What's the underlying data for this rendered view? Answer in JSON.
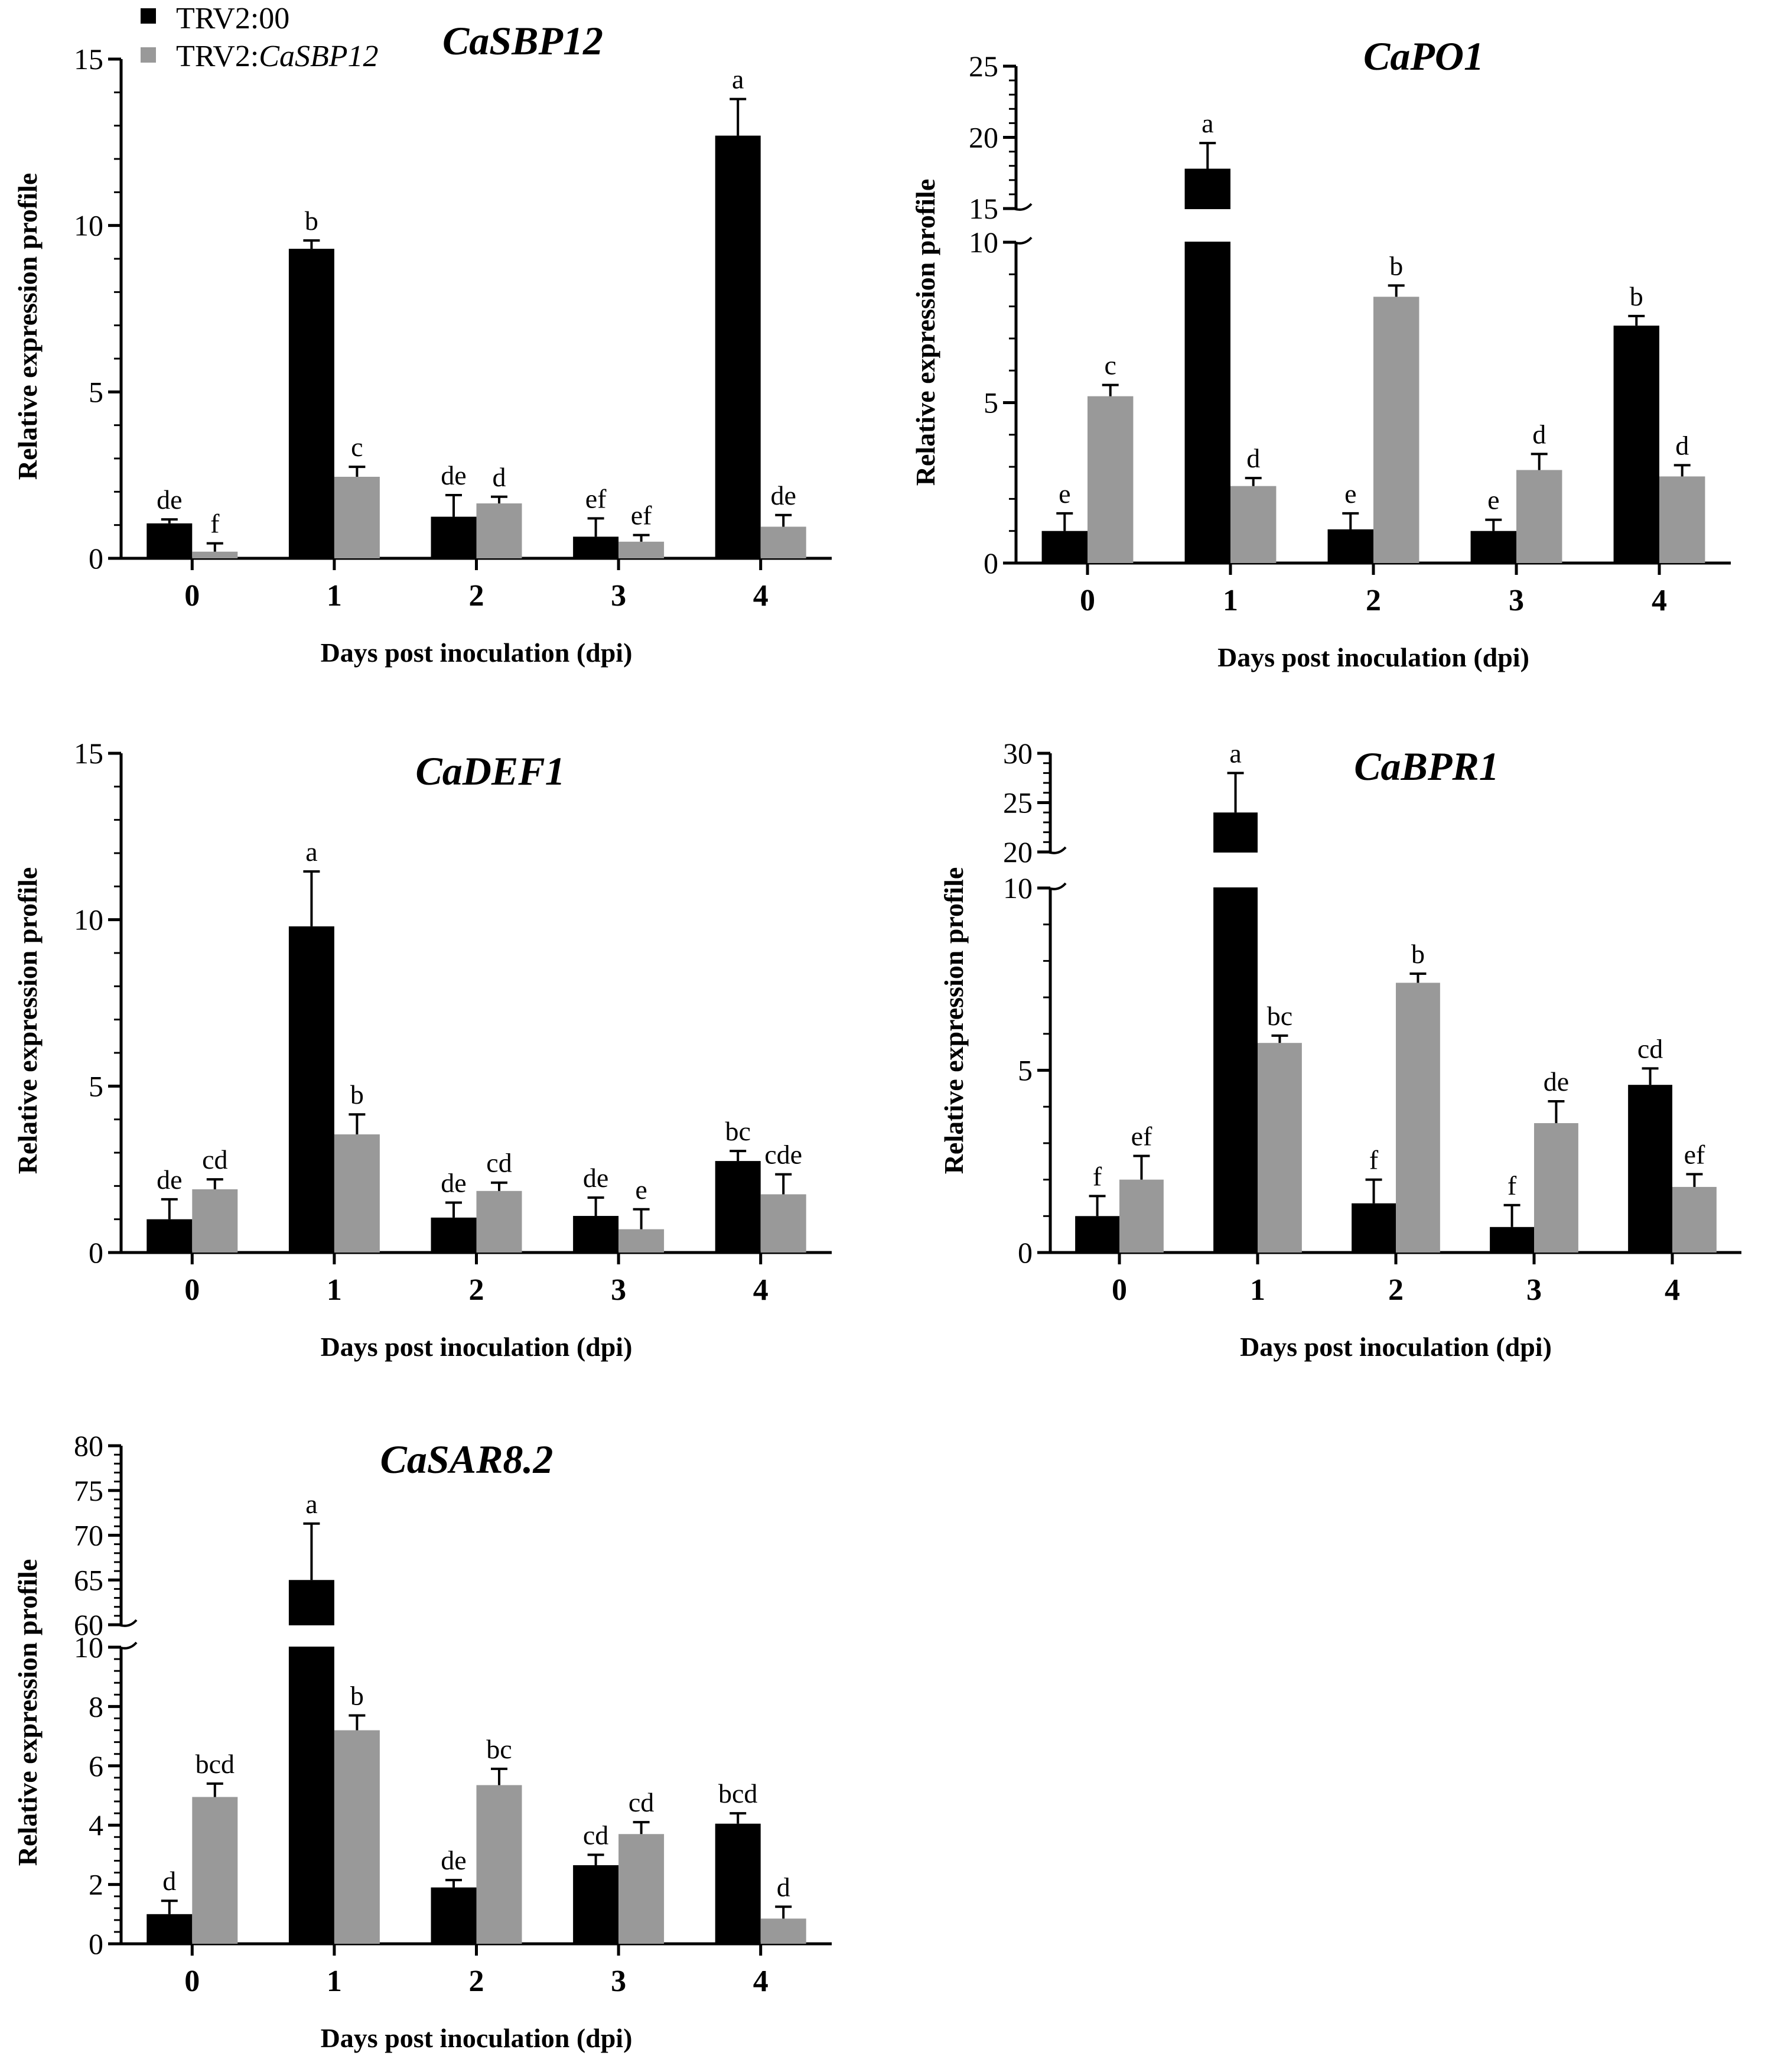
{
  "legend": {
    "series": [
      {
        "label_prefix": "TRV2:00",
        "label_italic": "",
        "color": "#000000"
      },
      {
        "label_prefix": "TRV2:",
        "label_italic": "CaSBP12",
        "color": "#999999"
      }
    ]
  },
  "chart_data": [
    {
      "type": "bar",
      "title": "CaSBP12",
      "xlabel": "Days post inoculation (dpi)",
      "ylabel": "Relative expression profile",
      "categories": [
        "0",
        "1",
        "2",
        "3",
        "4"
      ],
      "ylim": [
        0,
        15
      ],
      "yticks": [
        0,
        5,
        10,
        15
      ],
      "yticklabels": [
        "0",
        "5",
        "10",
        "15"
      ],
      "ybreak": null,
      "series": [
        {
          "name": "TRV2:00",
          "color": "#000000",
          "values": [
            1.05,
            9.3,
            1.25,
            0.65,
            12.7
          ],
          "errors": [
            0.12,
            0.25,
            0.65,
            0.55,
            1.1
          ],
          "labels": [
            "de",
            "b",
            "de",
            "ef",
            "a"
          ]
        },
        {
          "name": "TRV2:CaSBP12",
          "color": "#999999",
          "values": [
            0.2,
            2.45,
            1.65,
            0.5,
            0.95
          ],
          "errors": [
            0.25,
            0.3,
            0.2,
            0.2,
            0.35
          ],
          "labels": [
            "f",
            "c",
            "d",
            "ef",
            "de"
          ]
        }
      ]
    },
    {
      "type": "bar",
      "title": "CaPO1",
      "xlabel": "Days post inoculation (dpi)",
      "ylabel": "Relative expression profile",
      "categories": [
        "0",
        "1",
        "2",
        "3",
        "4"
      ],
      "ylim": [
        0,
        25
      ],
      "yticks": [
        0,
        5,
        10,
        15,
        20,
        25
      ],
      "yticklabels": [
        "0",
        "5",
        "10",
        "15",
        "20",
        "25"
      ],
      "ybreak": [
        10,
        15
      ],
      "series": [
        {
          "name": "TRV2:00",
          "color": "#000000",
          "values": [
            1.0,
            17.8,
            1.05,
            1.0,
            7.4
          ],
          "errors": [
            0.55,
            1.8,
            0.5,
            0.35,
            0.3
          ],
          "labels": [
            "e",
            "a",
            "e",
            "e",
            "b"
          ]
        },
        {
          "name": "TRV2:CaSBP12",
          "color": "#999999",
          "values": [
            5.2,
            2.4,
            8.3,
            2.9,
            2.7
          ],
          "errors": [
            0.35,
            0.25,
            0.35,
            0.5,
            0.35
          ],
          "labels": [
            "c",
            "d",
            "b",
            "d",
            "d"
          ]
        }
      ]
    },
    {
      "type": "bar",
      "title": "CaDEF1",
      "xlabel": "Days post inoculation (dpi)",
      "ylabel": "Relative expression profile",
      "categories": [
        "0",
        "1",
        "2",
        "3",
        "4"
      ],
      "ylim": [
        0,
        15
      ],
      "yticks": [
        0,
        5,
        10,
        15
      ],
      "yticklabels": [
        "0",
        "5",
        "10",
        "15"
      ],
      "ybreak": null,
      "series": [
        {
          "name": "TRV2:00",
          "color": "#000000",
          "values": [
            1.0,
            9.8,
            1.05,
            1.1,
            2.75
          ],
          "errors": [
            0.6,
            1.65,
            0.45,
            0.55,
            0.3
          ],
          "labels": [
            "de",
            "a",
            "de",
            "de",
            "bc"
          ]
        },
        {
          "name": "TRV2:CaSBP12",
          "color": "#999999",
          "values": [
            1.9,
            3.55,
            1.85,
            0.7,
            1.75
          ],
          "errors": [
            0.3,
            0.6,
            0.25,
            0.6,
            0.6
          ],
          "labels": [
            "cd",
            "b",
            "cd",
            "e",
            "cde"
          ]
        }
      ]
    },
    {
      "type": "bar",
      "title": "CaBPR1",
      "xlabel": "Days post inoculation (dpi)",
      "ylabel": "Relative expression profile",
      "categories": [
        "0",
        "1",
        "2",
        "3",
        "4"
      ],
      "ylim": [
        0,
        30
      ],
      "yticks": [
        0,
        5,
        10,
        20,
        25,
        30
      ],
      "yticklabels": [
        "0",
        "5",
        "10",
        "20",
        "25",
        "30"
      ],
      "ybreak": [
        10,
        20
      ],
      "series": [
        {
          "name": "TRV2:00",
          "color": "#000000",
          "values": [
            1.0,
            24.0,
            1.35,
            0.7,
            4.6
          ],
          "errors": [
            0.55,
            4.0,
            0.65,
            0.6,
            0.45
          ],
          "labels": [
            "f",
            "a",
            "f",
            "f",
            "cd"
          ]
        },
        {
          "name": "TRV2:CaSBP12",
          "color": "#999999",
          "values": [
            2.0,
            5.75,
            7.4,
            3.55,
            1.8
          ],
          "errors": [
            0.65,
            0.2,
            0.25,
            0.6,
            0.35
          ],
          "labels": [
            "ef",
            "bc",
            "b",
            "de",
            "ef"
          ]
        }
      ]
    },
    {
      "type": "bar",
      "title": "CaSAR8.2",
      "xlabel": "Days post inoculation (dpi)",
      "ylabel": "Relative expression profile",
      "categories": [
        "0",
        "1",
        "2",
        "3",
        "4"
      ],
      "ylim": [
        0,
        80
      ],
      "yticks": [
        0,
        2,
        4,
        6,
        8,
        10,
        60,
        65,
        70,
        75,
        80
      ],
      "yticklabels": [
        "0",
        "2",
        "4",
        "6",
        "8",
        "10",
        "60",
        "65",
        "70",
        "75",
        "80"
      ],
      "ybreak": [
        10,
        60
      ],
      "series": [
        {
          "name": "TRV2:00",
          "color": "#000000",
          "values": [
            1.0,
            65.0,
            1.9,
            2.65,
            4.05
          ],
          "errors": [
            0.45,
            6.3,
            0.25,
            0.35,
            0.35
          ],
          "labels": [
            "d",
            "a",
            "de",
            "cd",
            "bcd"
          ]
        },
        {
          "name": "TRV2:CaSBP12",
          "color": "#999999",
          "values": [
            4.95,
            7.2,
            5.35,
            3.7,
            0.85
          ],
          "errors": [
            0.45,
            0.5,
            0.55,
            0.4,
            0.4
          ],
          "labels": [
            "bcd",
            "b",
            "bc",
            "cd",
            "d"
          ]
        }
      ]
    }
  ]
}
